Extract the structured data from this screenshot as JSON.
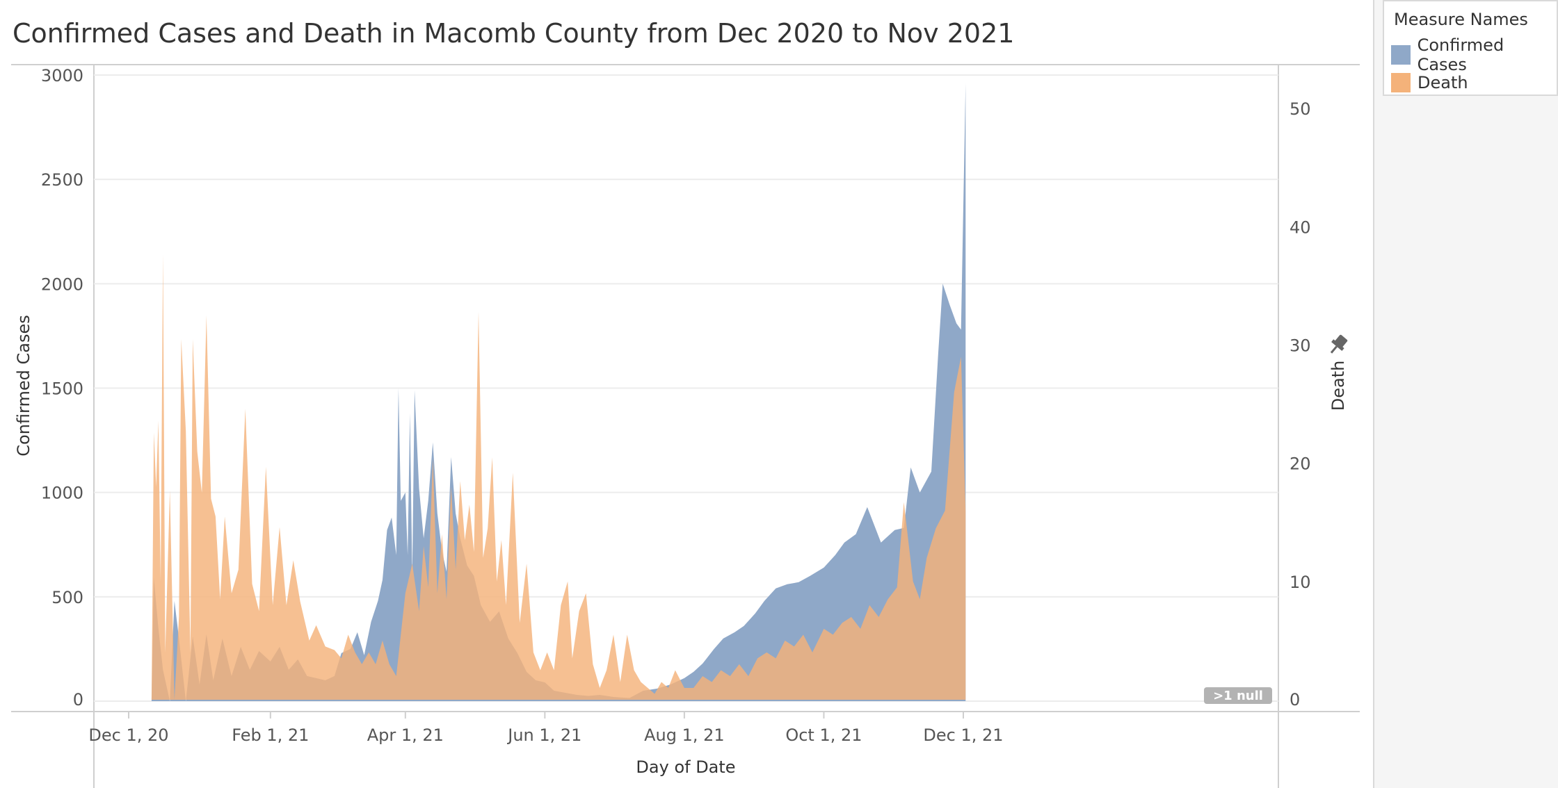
{
  "chart_data": {
    "type": "area",
    "title": "Confirmed Cases and Death in Macomb County from Dec 2020 to Nov 2021",
    "xlabel": "Day of Date",
    "ylabel": "Confirmed Cases",
    "ylabel_right": "Death",
    "x_ticks": [
      "Dec 1, 20",
      "Feb 1, 21",
      "Apr 1, 21",
      "Jun 1, 21",
      "Aug 1, 21",
      "Oct 1, 21",
      "Dec 1, 21"
    ],
    "y_ticks_left": [
      0,
      500,
      1000,
      1500,
      2000,
      2500,
      3000
    ],
    "y_ticks_right": [
      0,
      10,
      20,
      30,
      40,
      50
    ],
    "ylim_left": [
      -50,
      3050
    ],
    "ylim_right": [
      0,
      53.3
    ],
    "grid": true,
    "legend_position": "top-right",
    "null_badge": ">1 null",
    "series": [
      {
        "name": "Confirmed Cases",
        "axis": "left",
        "color": "#8fa8c8",
        "points": [
          [
            "2020-12-11",
            0
          ],
          [
            "2020-12-12",
            590
          ],
          [
            "2020-12-14",
            350
          ],
          [
            "2020-12-16",
            150
          ],
          [
            "2020-12-19",
            0
          ],
          [
            "2020-12-21",
            480
          ],
          [
            "2020-12-23",
            300
          ],
          [
            "2020-12-26",
            0
          ],
          [
            "2020-12-29",
            310
          ],
          [
            "2021-01-01",
            80
          ],
          [
            "2021-01-04",
            320
          ],
          [
            "2021-01-07",
            100
          ],
          [
            "2021-01-11",
            300
          ],
          [
            "2021-01-15",
            120
          ],
          [
            "2021-01-19",
            260
          ],
          [
            "2021-01-23",
            150
          ],
          [
            "2021-01-27",
            240
          ],
          [
            "2021-02-01",
            190
          ],
          [
            "2021-02-05",
            260
          ],
          [
            "2021-02-09",
            150
          ],
          [
            "2021-02-13",
            200
          ],
          [
            "2021-02-17",
            120
          ],
          [
            "2021-02-21",
            110
          ],
          [
            "2021-02-25",
            100
          ],
          [
            "2021-03-01",
            120
          ],
          [
            "2021-03-04",
            230
          ],
          [
            "2021-03-08",
            250
          ],
          [
            "2021-03-11",
            330
          ],
          [
            "2021-03-14",
            220
          ],
          [
            "2021-03-17",
            380
          ],
          [
            "2021-03-20",
            480
          ],
          [
            "2021-03-22",
            580
          ],
          [
            "2021-03-24",
            820
          ],
          [
            "2021-03-26",
            880
          ],
          [
            "2021-03-28",
            700
          ],
          [
            "2021-03-29",
            1500
          ],
          [
            "2021-03-30",
            960
          ],
          [
            "2021-04-01",
            1000
          ],
          [
            "2021-04-02",
            700
          ],
          [
            "2021-04-03",
            1380
          ],
          [
            "2021-04-04",
            600
          ],
          [
            "2021-04-05",
            1490
          ],
          [
            "2021-04-07",
            1020
          ],
          [
            "2021-04-09",
            780
          ],
          [
            "2021-04-11",
            960
          ],
          [
            "2021-04-13",
            1240
          ],
          [
            "2021-04-15",
            900
          ],
          [
            "2021-04-17",
            720
          ],
          [
            "2021-04-19",
            620
          ],
          [
            "2021-04-21",
            1170
          ],
          [
            "2021-04-23",
            900
          ],
          [
            "2021-04-25",
            780
          ],
          [
            "2021-04-28",
            650
          ],
          [
            "2021-05-01",
            600
          ],
          [
            "2021-05-04",
            460
          ],
          [
            "2021-05-08",
            380
          ],
          [
            "2021-05-12",
            430
          ],
          [
            "2021-05-16",
            300
          ],
          [
            "2021-05-20",
            230
          ],
          [
            "2021-05-24",
            140
          ],
          [
            "2021-05-28",
            100
          ],
          [
            "2021-06-01",
            90
          ],
          [
            "2021-06-05",
            50
          ],
          [
            "2021-06-10",
            40
          ],
          [
            "2021-06-15",
            30
          ],
          [
            "2021-06-20",
            25
          ],
          [
            "2021-06-25",
            30
          ],
          [
            "2021-07-01",
            20
          ],
          [
            "2021-07-08",
            15
          ],
          [
            "2021-07-14",
            50
          ],
          [
            "2021-07-20",
            60
          ],
          [
            "2021-07-26",
            80
          ],
          [
            "2021-08-01",
            110
          ],
          [
            "2021-08-05",
            140
          ],
          [
            "2021-08-09",
            180
          ],
          [
            "2021-08-14",
            250
          ],
          [
            "2021-08-18",
            300
          ],
          [
            "2021-08-23",
            330
          ],
          [
            "2021-08-27",
            360
          ],
          [
            "2021-09-01",
            420
          ],
          [
            "2021-09-05",
            480
          ],
          [
            "2021-09-10",
            540
          ],
          [
            "2021-09-15",
            560
          ],
          [
            "2021-09-20",
            570
          ],
          [
            "2021-09-25",
            600
          ],
          [
            "2021-10-01",
            640
          ],
          [
            "2021-10-06",
            700
          ],
          [
            "2021-10-10",
            760
          ],
          [
            "2021-10-15",
            800
          ],
          [
            "2021-10-20",
            930
          ],
          [
            "2021-10-26",
            760
          ],
          [
            "2021-11-01",
            820
          ],
          [
            "2021-11-05",
            830
          ],
          [
            "2021-11-08",
            1120
          ],
          [
            "2021-11-12",
            1000
          ],
          [
            "2021-11-17",
            1100
          ],
          [
            "2021-11-20",
            1660
          ],
          [
            "2021-11-22",
            2000
          ],
          [
            "2021-11-25",
            1900
          ],
          [
            "2021-11-28",
            1810
          ],
          [
            "2021-11-30",
            1780
          ],
          [
            "2021-12-02",
            2960
          ]
        ]
      },
      {
        "name": "Death",
        "axis": "right",
        "color": "#f4b27a",
        "points": [
          [
            "2020-12-11",
            0
          ],
          [
            "2020-12-12",
            22.6
          ],
          [
            "2020-12-13",
            18.0
          ],
          [
            "2020-12-14",
            23.6
          ],
          [
            "2020-12-15",
            10.0
          ],
          [
            "2020-12-16",
            37.7
          ],
          [
            "2020-12-17",
            4.0
          ],
          [
            "2020-12-19",
            17.7
          ],
          [
            "2020-12-21",
            0
          ],
          [
            "2020-12-23",
            7.0
          ],
          [
            "2020-12-24",
            30.5
          ],
          [
            "2020-12-26",
            22.7
          ],
          [
            "2020-12-28",
            4.0
          ],
          [
            "2020-12-29",
            30.5
          ],
          [
            "2020-12-31",
            21.0
          ],
          [
            "2021-01-02",
            17.5
          ],
          [
            "2021-01-04",
            32.5
          ],
          [
            "2021-01-06",
            17.0
          ],
          [
            "2021-01-08",
            15.5
          ],
          [
            "2021-01-10",
            8.5
          ],
          [
            "2021-01-12",
            15.5
          ],
          [
            "2021-01-15",
            9.0
          ],
          [
            "2021-01-18",
            11.0
          ],
          [
            "2021-01-21",
            24.6
          ],
          [
            "2021-01-24",
            9.8
          ],
          [
            "2021-01-27",
            7.5
          ],
          [
            "2021-01-30",
            19.7
          ],
          [
            "2021-02-02",
            8.0
          ],
          [
            "2021-02-05",
            14.6
          ],
          [
            "2021-02-08",
            8.0
          ],
          [
            "2021-02-11",
            11.8
          ],
          [
            "2021-02-14",
            8.3
          ],
          [
            "2021-02-18",
            5.0
          ],
          [
            "2021-02-21",
            6.3
          ],
          [
            "2021-02-25",
            4.5
          ],
          [
            "2021-03-01",
            4.2
          ],
          [
            "2021-03-04",
            3.5
          ],
          [
            "2021-03-07",
            5.5
          ],
          [
            "2021-03-10",
            4.0
          ],
          [
            "2021-03-13",
            3.0
          ],
          [
            "2021-03-16",
            4.0
          ],
          [
            "2021-03-19",
            3.0
          ],
          [
            "2021-03-22",
            5.0
          ],
          [
            "2021-03-25",
            3.0
          ],
          [
            "2021-03-28",
            2.0
          ],
          [
            "2021-04-01",
            9.0
          ],
          [
            "2021-04-04",
            11.5
          ],
          [
            "2021-04-07",
            7.5
          ],
          [
            "2021-04-09",
            13.0
          ],
          [
            "2021-04-11",
            9.5
          ],
          [
            "2021-04-13",
            20.4
          ],
          [
            "2021-04-15",
            9.0
          ],
          [
            "2021-04-17",
            14.0
          ],
          [
            "2021-04-19",
            8.5
          ],
          [
            "2021-04-21",
            18.0
          ],
          [
            "2021-04-23",
            11.0
          ],
          [
            "2021-04-25",
            18.5
          ],
          [
            "2021-04-27",
            13.5
          ],
          [
            "2021-04-29",
            16.5
          ],
          [
            "2021-05-01",
            12.5
          ],
          [
            "2021-05-03",
            32.8
          ],
          [
            "2021-05-05",
            12.0
          ],
          [
            "2021-05-07",
            14.5
          ],
          [
            "2021-05-09",
            20.5
          ],
          [
            "2021-05-11",
            10.0
          ],
          [
            "2021-05-13",
            13.5
          ],
          [
            "2021-05-15",
            8.0
          ],
          [
            "2021-05-18",
            19.2
          ],
          [
            "2021-05-21",
            6.5
          ],
          [
            "2021-05-24",
            11.5
          ],
          [
            "2021-05-27",
            4.0
          ],
          [
            "2021-05-30",
            2.5
          ],
          [
            "2021-06-02",
            4.0
          ],
          [
            "2021-06-05",
            2.5
          ],
          [
            "2021-06-08",
            8.0
          ],
          [
            "2021-06-11",
            10.0
          ],
          [
            "2021-06-13",
            3.5
          ],
          [
            "2021-06-16",
            7.5
          ],
          [
            "2021-06-19",
            9.0
          ],
          [
            "2021-06-22",
            3.0
          ],
          [
            "2021-06-25",
            1.0
          ],
          [
            "2021-06-28",
            2.5
          ],
          [
            "2021-07-01",
            5.5
          ],
          [
            "2021-07-04",
            1.5
          ],
          [
            "2021-07-07",
            5.5
          ],
          [
            "2021-07-10",
            2.5
          ],
          [
            "2021-07-13",
            1.5
          ],
          [
            "2021-07-16",
            1.0
          ],
          [
            "2021-07-19",
            0.5
          ],
          [
            "2021-07-22",
            1.5
          ],
          [
            "2021-07-25",
            1.0
          ],
          [
            "2021-07-28",
            2.5
          ],
          [
            "2021-08-01",
            1.0
          ],
          [
            "2021-08-05",
            1.0
          ],
          [
            "2021-08-09",
            2.0
          ],
          [
            "2021-08-13",
            1.5
          ],
          [
            "2021-08-17",
            2.5
          ],
          [
            "2021-08-21",
            2.0
          ],
          [
            "2021-08-25",
            3.0
          ],
          [
            "2021-08-29",
            2.0
          ],
          [
            "2021-09-02",
            3.5
          ],
          [
            "2021-09-06",
            4.0
          ],
          [
            "2021-09-10",
            3.5
          ],
          [
            "2021-09-14",
            5.0
          ],
          [
            "2021-09-18",
            4.5
          ],
          [
            "2021-09-22",
            5.5
          ],
          [
            "2021-09-26",
            4.0
          ],
          [
            "2021-10-01",
            6.0
          ],
          [
            "2021-10-05",
            5.5
          ],
          [
            "2021-10-09",
            6.5
          ],
          [
            "2021-10-13",
            7.0
          ],
          [
            "2021-10-17",
            6.0
          ],
          [
            "2021-10-21",
            8.0
          ],
          [
            "2021-10-25",
            7.0
          ],
          [
            "2021-10-29",
            8.5
          ],
          [
            "2021-11-02",
            9.5
          ],
          [
            "2021-11-05",
            16.7
          ],
          [
            "2021-11-09",
            10.0
          ],
          [
            "2021-11-12",
            8.5
          ],
          [
            "2021-11-15",
            12.0
          ],
          [
            "2021-11-19",
            14.5
          ],
          [
            "2021-11-23",
            16.0
          ],
          [
            "2021-11-27",
            26.0
          ],
          [
            "2021-11-30",
            29.0
          ],
          [
            "2021-12-02",
            16.0
          ]
        ]
      }
    ]
  }
}
